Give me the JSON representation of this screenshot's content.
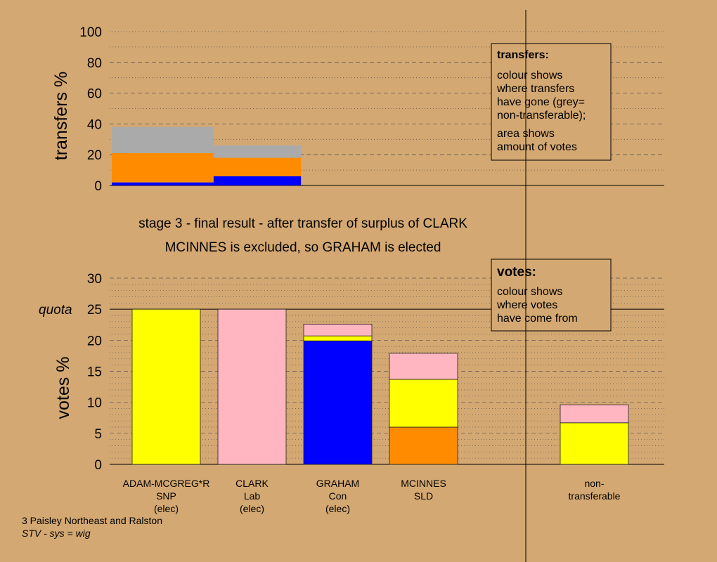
{
  "stage_text": {
    "line1": "stage 3 - final result - after transfer of surplus of CLARK",
    "line2": "MCINNES is excluded, so GRAHAM is elected"
  },
  "footer": {
    "constituency": "3 Paisley Northeast and Ralston",
    "system": "STV - sys = wig"
  },
  "colors": {
    "background": "#d4a872",
    "plot_background": "#ffcc99",
    "SNP": "#ffff00",
    "Lab": "#ffb6c1",
    "Con": "#0000ff",
    "SLD": "#ff8c00",
    "non_transferable": "#aaaaaa"
  },
  "chart_data": [
    {
      "type": "bar",
      "name": "transfers",
      "ylabel": "transfers %",
      "ylim": [
        0,
        100
      ],
      "yticks": [
        0,
        20,
        40,
        60,
        80,
        100
      ],
      "grid": true,
      "legend_note": {
        "title": "transfers:",
        "lines": [
          "colour shows",
          "where transfers",
          "have gone (grey=",
          "non-transferable);",
          "area shows",
          "amount of votes"
        ]
      },
      "columns": [
        {
          "x_range": [
            0,
            7
          ],
          "segments": [
            {
              "party": "Con",
              "value": 2
            },
            {
              "party": "SLD",
              "value": 19
            },
            {
              "party": "non_transferable",
              "value": 17
            }
          ]
        },
        {
          "x_range": [
            7,
            13
          ],
          "segments": [
            {
              "party": "Con",
              "value": 6
            },
            {
              "party": "SLD",
              "value": 12
            },
            {
              "party": "non_transferable",
              "value": 8
            }
          ]
        }
      ]
    },
    {
      "type": "bar",
      "name": "votes",
      "ylabel": "votes %",
      "ylim": [
        0,
        30
      ],
      "yticks": [
        0,
        5,
        10,
        15,
        20,
        25,
        30
      ],
      "quota": {
        "label": "quota",
        "value": 25
      },
      "grid": true,
      "legend_note": {
        "title": "votes:",
        "lines": [
          "colour shows",
          "where votes",
          "have come from"
        ]
      },
      "candidates": [
        {
          "name": "ADAM-MCGREG*R",
          "party": "SNP",
          "status": "(elec)",
          "segments": [
            {
              "party": "SNP",
              "value": 25
            }
          ]
        },
        {
          "name": "CLARK",
          "party": "Lab",
          "status": "(elec)",
          "segments": [
            {
              "party": "Lab",
              "value": 25
            }
          ]
        },
        {
          "name": "GRAHAM",
          "party": "Con",
          "status": "(elec)",
          "segments": [
            {
              "party": "Con",
              "value": 19.9
            },
            {
              "party": "SNP",
              "value": 0.8
            },
            {
              "party": "Lab",
              "value": 1.9
            }
          ]
        },
        {
          "name": "MCINNES",
          "party": "SLD",
          "status": "",
          "segments": [
            {
              "party": "SLD",
              "value": 6
            },
            {
              "party": "SNP",
              "value": 7.7
            },
            {
              "party": "Lab",
              "value": 4.2
            }
          ]
        }
      ],
      "non_transferable": {
        "label_lines": [
          "non-",
          "transferable"
        ],
        "segments": [
          {
            "party": "SNP",
            "value": 6.7
          },
          {
            "party": "Lab",
            "value": 2.9
          }
        ]
      }
    }
  ]
}
